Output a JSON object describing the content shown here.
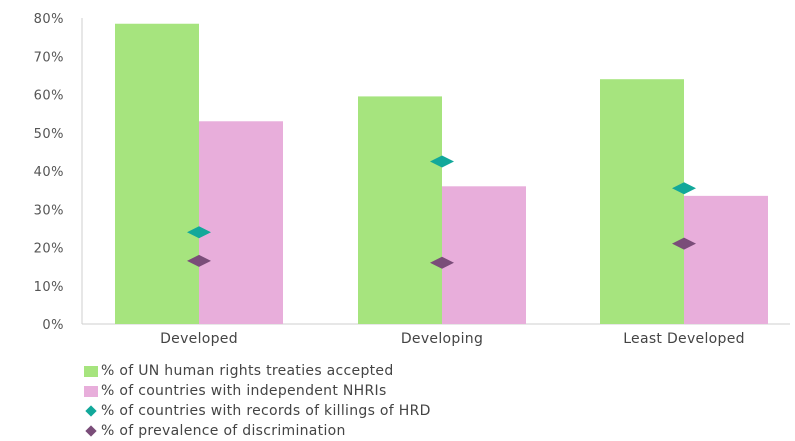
{
  "chart_data": {
    "type": "bar",
    "categories": [
      "Developed",
      "Developing",
      "Least Developed"
    ],
    "ylim": [
      0,
      80
    ],
    "y_ticks": [
      "0%",
      "10%",
      "20%",
      "30%",
      "40%",
      "50%",
      "60%",
      "70%",
      "80%"
    ],
    "grid": false,
    "legend_position": "bottom",
    "series": [
      {
        "name": "% of UN human rights treaties accepted",
        "kind": "bar",
        "color": "#a6e47e",
        "values": [
          78.5,
          59.5,
          64
        ]
      },
      {
        "name": "% of countries with independent NHRIs",
        "kind": "bar",
        "color": "#e8aedb",
        "values": [
          53,
          36,
          33.5
        ]
      },
      {
        "name": "% of countries with records of killings of HRD",
        "kind": "marker",
        "color": "#12a89a",
        "values": [
          24,
          42.5,
          35.5
        ]
      },
      {
        "name": "% of prevalence of discrimination",
        "kind": "marker",
        "color": "#7a4d79",
        "values": [
          16.5,
          16,
          21
        ]
      }
    ]
  }
}
